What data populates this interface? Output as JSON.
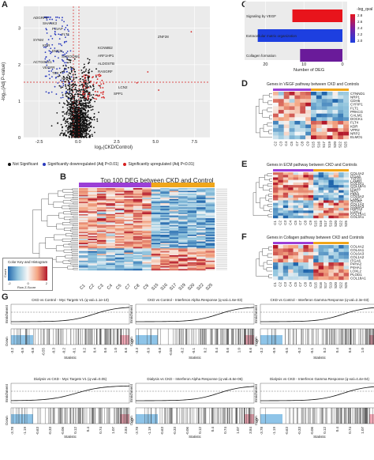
{
  "panels": {
    "a": "A",
    "b": "B",
    "c": "C",
    "d": "D",
    "e": "E",
    "f": "F",
    "g": "G"
  },
  "volcano": {
    "ylabel": "-log₁₀(Adj P-value)",
    "xlabel": "log₂(CKD/Control)",
    "xticks": [
      "-2.5",
      "0.0",
      "2.5",
      "5.0",
      "7.5"
    ],
    "yticks": [
      "0",
      "1",
      "2",
      "3"
    ],
    "down_genes": [
      "ADGRF5",
      "SHANK3",
      "PLVAP",
      "FLT1",
      "SYNM",
      "KDR",
      "EMCN",
      "SHROOM4",
      "ACTG0CE1",
      "VEGFR",
      "TEK",
      "NRP1"
    ],
    "up_genes": [
      "ZNF28",
      "KCNMB2",
      "ARF1HP1",
      "ALDOSTB",
      "RASGRF",
      "LCN2",
      "SPP1"
    ],
    "legend": [
      "Not Significant",
      "Significantly downregulated (Adj P<0.01)",
      "Significantly upregulated (Adj P<0.01)"
    ],
    "colors": {
      "ns": "#111111",
      "down": "#2b3bbd",
      "up": "#d62020"
    }
  },
  "pathways": {
    "chart_data": {
      "type": "bar",
      "orientation": "horizontal",
      "categories": [
        "Signaling by VEGF",
        "Extracellular matrix organization",
        "Collagen formation"
      ],
      "values": [
        13,
        22,
        11
      ],
      "color_values": [
        3.0,
        1.8,
        2.2
      ],
      "xlabel": "Number of DEG",
      "xticks": [
        "20",
        "10",
        "0"
      ],
      "legend_title": "-log_qval",
      "legend_ticks": [
        "2.8",
        "2.6",
        "2.4",
        "2.2",
        "2.0"
      ]
    }
  },
  "heatmap_b": {
    "title": "Top 100 DEG between CKD and Control",
    "columns": [
      "C1",
      "C2",
      "C3",
      "C4",
      "C5",
      "C7",
      "C8",
      "C9",
      "S15",
      "S16",
      "S17",
      "S19",
      "S20",
      "S22",
      "S25"
    ],
    "key_title": "Color Key and Histogram",
    "key_xlabel": "Row Z-Score",
    "key_ylabel": "Count",
    "key_ticks": [
      "-2",
      "0",
      "2"
    ]
  },
  "heatmap_d": {
    "title": "Genes in VEGF pathway between CKD and Controls",
    "genes": [
      "CTNND1",
      "NRP1",
      "CDH5",
      "CYFIP1",
      "FLT1",
      "PRKCG",
      "CALM1",
      "DOCK1",
      "FLT4",
      "KDR",
      "VPR2",
      "NRP2",
      "ELMO1"
    ],
    "columns": [
      "C2",
      "C3",
      "C4",
      "C5",
      "C7",
      "C8",
      "C9",
      "S15",
      "S16",
      "S17",
      "S19",
      "S20",
      "S22",
      "S25"
    ]
  },
  "heatmap_e": {
    "title": "Genes in ECM pathway between CKD and Controls",
    "genes": [
      "COL4A2",
      "ITGA6",
      "TGFB1",
      "LAMB1",
      "COL4A1",
      "COL18A1",
      "ITGA5",
      "NID1",
      "FBN1",
      "COL5A2",
      "LAMC1",
      "SPARC",
      "COL1A2",
      "COL6A3",
      "HSPG2",
      "LOXL2",
      "COL15A1",
      "COL3A1"
    ],
    "columns": [
      "C1",
      "C2",
      "C3",
      "C4",
      "C5",
      "C7",
      "C8",
      "C9",
      "S15",
      "S16",
      "S17",
      "S19",
      "S20",
      "S22",
      "S25"
    ]
  },
  "heatmap_f": {
    "title": "Genes in Collagen pathway between CKD and Controls",
    "genes": [
      "COL4A2",
      "COL4A1",
      "COL6A3",
      "COL1A2",
      "ITGA6",
      "P4HA2",
      "P4HA1",
      "LOXL2",
      "PLOD1",
      "COL18A1"
    ],
    "columns": [
      "C1",
      "C2",
      "C3",
      "C4",
      "C5",
      "C7",
      "C8",
      "C9",
      "S15",
      "S16",
      "S17",
      "S19",
      "S20",
      "S22",
      "S25"
    ]
  },
  "gsea": [
    {
      "title": "CKD vs Control - Myc Targets V1 (q-val=1.1e-10)",
      "ticks": [
        "-3.2",
        "-0.9",
        "-0.8",
        "-0.55",
        "-0.3",
        "-0.2",
        "-0.1",
        "0.2",
        "0.4",
        "0.6",
        "1.0",
        "6.6"
      ]
    },
    {
      "title": "CKD vs Control - Interferon Alpha Response (q-val=1.6e-03)",
      "ticks": [
        "-3.3",
        "-0.9",
        "-0.8",
        "-0.55",
        "-0.2",
        "-0.1",
        "0.2",
        "0.4",
        "0.6",
        "1.0",
        "6.6"
      ]
    },
    {
      "title": "CKD vs Control - Interferon Gamma Response (q-val=2.3e-03)",
      "ticks": [
        "-3.2",
        "-0.9",
        "-0.5",
        "-0.2",
        "-0.1",
        "0.2",
        "0.4",
        "0.6",
        "1.0",
        "6.6"
      ]
    },
    {
      "title": "Dialysis vs CKD - Myc Targets V1 (q-val=0.05)",
      "ticks": [
        "-3.78",
        "-1.19",
        "-0.63",
        "-0.33",
        "-0.06",
        "0.12",
        "0.4",
        "0.74",
        "1.07",
        "3.84"
      ]
    },
    {
      "title": "Dialysis vs CKD - Interferon Alpha Response (q-val=6.6e-06)",
      "ticks": [
        "-3.78",
        "-1.19",
        "-0.63",
        "-0.33",
        "-0.06",
        "0.12",
        "0.4",
        "0.74",
        "1.07",
        "3.84"
      ]
    },
    {
      "title": "Dialysis vs CKD - Interferon Gamma Response (q-val=4.4e-04)",
      "ticks": [
        "-3.78",
        "-1.19",
        "-0.63",
        "-0.33",
        "-0.06",
        "0.12",
        "0.4",
        "0.74",
        "1.07",
        "3.84"
      ]
    }
  ],
  "gsea_labels": {
    "ylabel": "Enrichment",
    "xlabel": "Statistic",
    "down": "Down",
    "up": "Up"
  }
}
